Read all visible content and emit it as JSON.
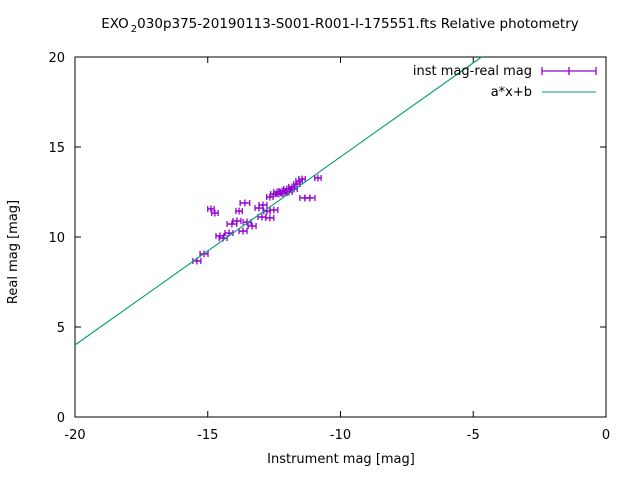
{
  "window": {
    "background": "#ffffff",
    "foreground": "#000000"
  },
  "chart_data": {
    "type": "scatter",
    "title": {
      "prefix": "EXO",
      "subscript": "2",
      "rest": "030p375-20190113-S001-R001-I-175551.fts Relative photometry"
    },
    "xlabel": "Instrument mag [mag]",
    "ylabel": "Real mag [mag]",
    "xlim": [
      -20,
      0
    ],
    "ylim": [
      0,
      20
    ],
    "x_ticks": [
      -20,
      -15,
      -10,
      -5,
      0
    ],
    "y_ticks": [
      0,
      5,
      10,
      15,
      20
    ],
    "grid": false,
    "legend": {
      "position": "top-right-inside",
      "entries": [
        {
          "label": "inst mag-real mag",
          "style": "xerrorbar",
          "color": "#9400d3"
        },
        {
          "label": "a*x+b",
          "style": "line",
          "color": "#009e73"
        }
      ]
    },
    "series": [
      {
        "name": "inst mag-real mag",
        "style": "xerrorbars",
        "color": "#9400d3",
        "points": [
          {
            "x": -15.41,
            "y": 8.67,
            "xerr": 0.15
          },
          {
            "x": -15.14,
            "y": 9.06,
            "xerr": 0.15
          },
          {
            "x": -14.88,
            "y": 11.56,
            "xerr": 0.12
          },
          {
            "x": -14.73,
            "y": 11.33,
            "xerr": 0.12
          },
          {
            "x": -14.54,
            "y": 10.06,
            "xerr": 0.15
          },
          {
            "x": -14.42,
            "y": 9.94,
            "xerr": 0.15
          },
          {
            "x": -14.2,
            "y": 10.22,
            "xerr": 0.15
          },
          {
            "x": -14.09,
            "y": 10.72,
            "xerr": 0.18
          },
          {
            "x": -13.9,
            "y": 10.89,
            "xerr": 0.15
          },
          {
            "x": -13.67,
            "y": 10.33,
            "xerr": 0.15
          },
          {
            "x": -13.82,
            "y": 11.44,
            "xerr": 0.12
          },
          {
            "x": -13.52,
            "y": 10.83,
            "xerr": 0.15
          },
          {
            "x": -13.33,
            "y": 10.61,
            "xerr": 0.15
          },
          {
            "x": -13.6,
            "y": 11.89,
            "xerr": 0.18
          },
          {
            "x": -13.07,
            "y": 11.61,
            "xerr": 0.15
          },
          {
            "x": -12.92,
            "y": 11.78,
            "xerr": 0.15
          },
          {
            "x": -12.96,
            "y": 11.11,
            "xerr": 0.15
          },
          {
            "x": -12.77,
            "y": 11.44,
            "xerr": 0.12
          },
          {
            "x": -12.66,
            "y": 11.06,
            "xerr": 0.15
          },
          {
            "x": -12.51,
            "y": 11.5,
            "xerr": 0.15
          },
          {
            "x": -12.66,
            "y": 12.22,
            "xerr": 0.12
          },
          {
            "x": -12.51,
            "y": 12.39,
            "xerr": 0.12
          },
          {
            "x": -12.39,
            "y": 12.5,
            "xerr": 0.12
          },
          {
            "x": -12.32,
            "y": 12.39,
            "xerr": 0.12
          },
          {
            "x": -12.2,
            "y": 12.56,
            "xerr": 0.12
          },
          {
            "x": -12.13,
            "y": 12.44,
            "xerr": 0.12
          },
          {
            "x": -12.02,
            "y": 12.67,
            "xerr": 0.12
          },
          {
            "x": -11.94,
            "y": 12.5,
            "xerr": 0.12
          },
          {
            "x": -11.83,
            "y": 12.78,
            "xerr": 0.12
          },
          {
            "x": -11.75,
            "y": 12.67,
            "xerr": 0.12
          },
          {
            "x": -11.64,
            "y": 12.94,
            "xerr": 0.12
          },
          {
            "x": -11.56,
            "y": 13.11,
            "xerr": 0.12
          },
          {
            "x": -11.45,
            "y": 13.22,
            "xerr": 0.12
          },
          {
            "x": -11.34,
            "y": 12.17,
            "xerr": 0.19
          },
          {
            "x": -11.15,
            "y": 12.17,
            "xerr": 0.19
          },
          {
            "x": -10.85,
            "y": 13.28,
            "xerr": 0.12
          }
        ]
      },
      {
        "name": "a*x+b",
        "style": "line",
        "color": "#009e73",
        "fit": {
          "a": 1.045,
          "b": 24.9
        }
      }
    ]
  }
}
